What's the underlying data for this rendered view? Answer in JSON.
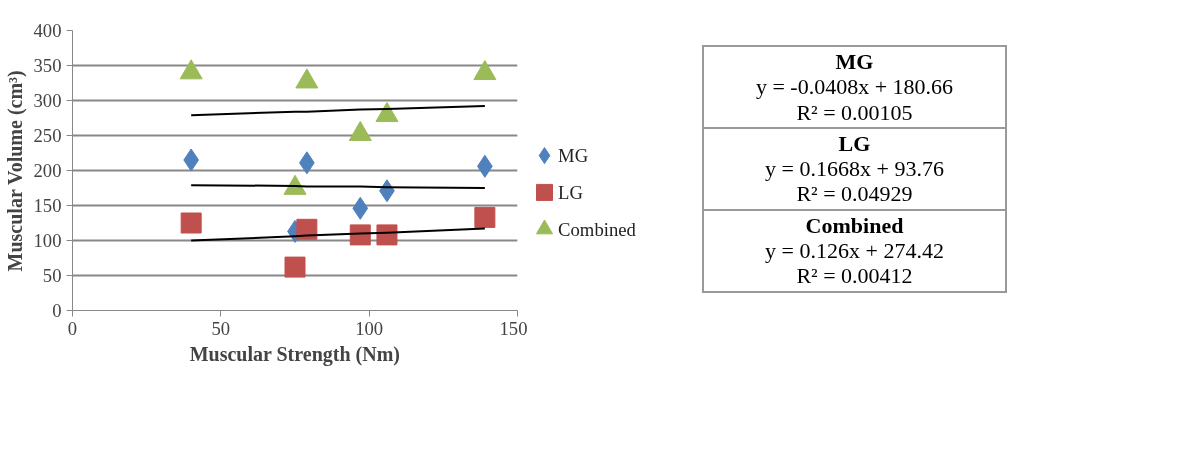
{
  "chart_data": {
    "type": "scatter",
    "xlabel": "Muscular Strength (Nm)",
    "ylabel": "Muscular Volume (cm³)",
    "xlim": [
      0,
      150
    ],
    "xticks": [
      0,
      50,
      100,
      150
    ],
    "ylim": [
      0,
      400
    ],
    "yticks": [
      0,
      50,
      100,
      150,
      200,
      250,
      300,
      350,
      400
    ],
    "grid": "y",
    "legend": "right",
    "x": [
      40,
      75,
      79,
      97,
      106,
      139
    ],
    "series": [
      {
        "name": "MG",
        "color": "#4f81bd",
        "marker": "diamond",
        "values": [
          215,
          113,
          211,
          146,
          171,
          206
        ]
      },
      {
        "name": "LG",
        "color": "#c0504d",
        "marker": "square",
        "values": [
          125,
          62,
          116,
          108,
          108,
          133
        ]
      },
      {
        "name": "Combined",
        "color": "#9bbb59",
        "marker": "triangle",
        "values": [
          340,
          175,
          327,
          252,
          279,
          339
        ]
      },
      {
        "type": "line",
        "color": "#000000",
        "x": [
          40,
          75,
          79,
          97,
          106,
          139
        ],
        "values": [
          179,
          178,
          177,
          177,
          176,
          175
        ]
      },
      {
        "type": "line",
        "color": "#000000",
        "x": [
          40,
          75,
          79,
          97,
          106,
          139
        ],
        "values": [
          100,
          106,
          107,
          110,
          111,
          117
        ]
      },
      {
        "type": "line",
        "color": "#000000",
        "x": [
          40,
          75,
          79,
          97,
          106,
          139
        ],
        "values": [
          279,
          284,
          284,
          287,
          288,
          292
        ]
      }
    ],
    "annotations": [
      "MG",
      "y = -0.0408x + 180.66",
      "R² = 0.00105",
      "LG",
      "y = 0.1668x + 93.76",
      "R² = 0.04929",
      "Combined",
      "y = 0.126x + 274.42",
      "R² = 0.00412"
    ]
  }
}
